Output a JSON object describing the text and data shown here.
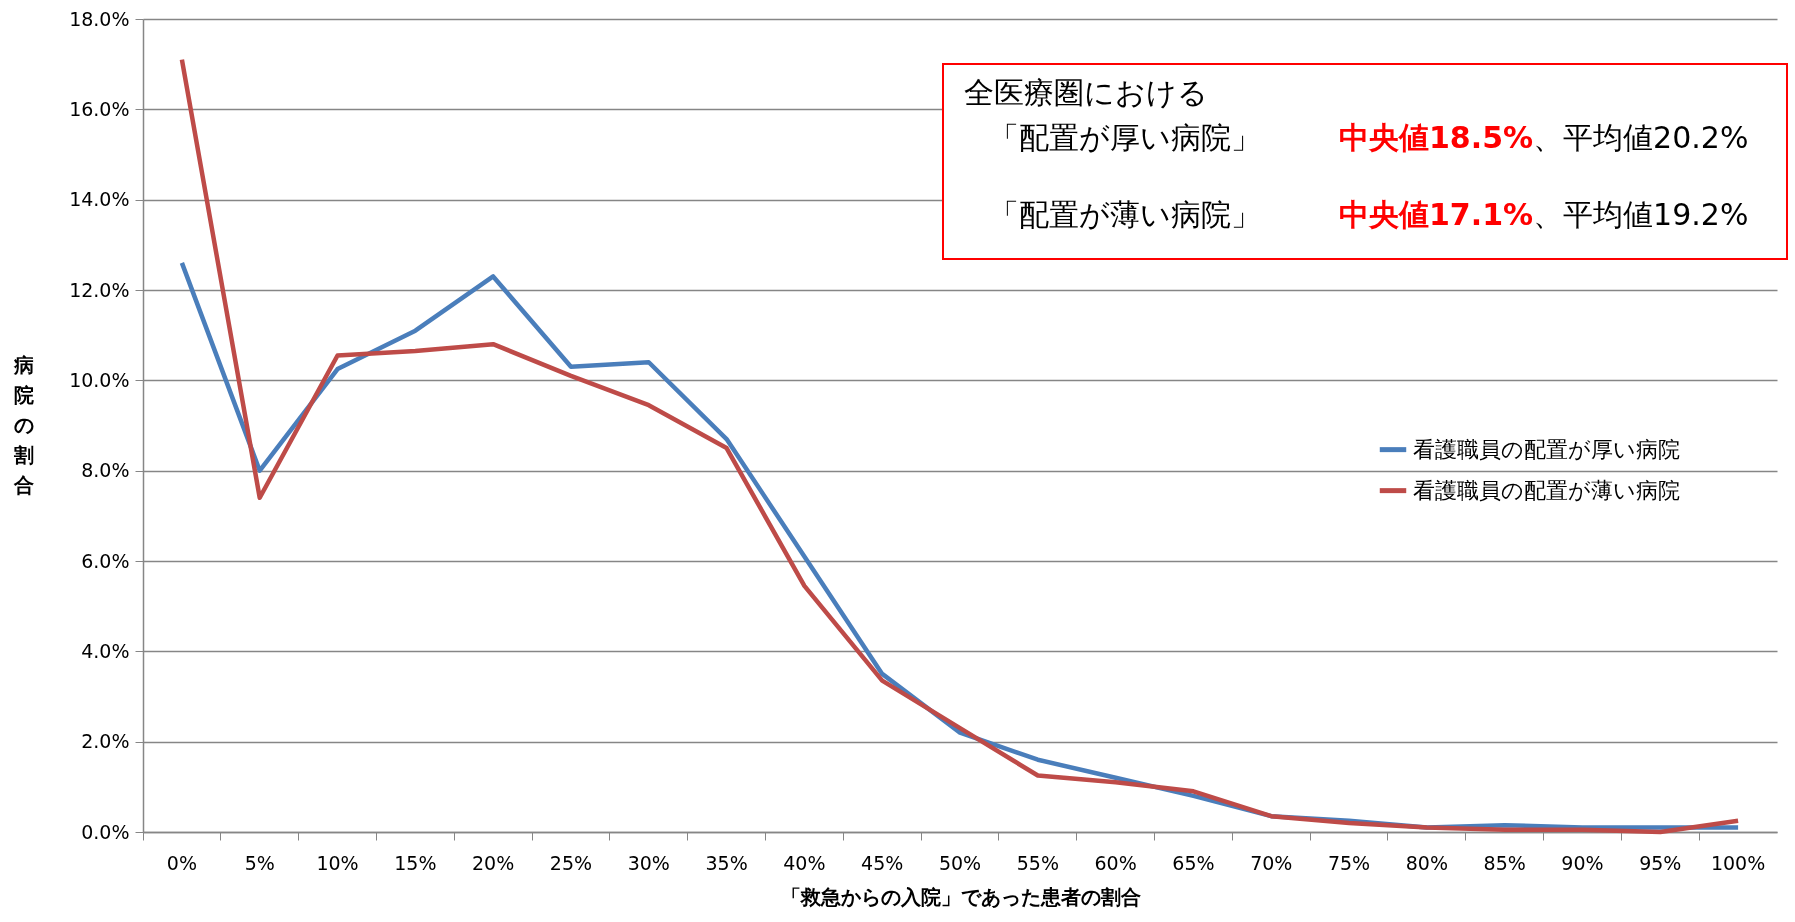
{
  "chart_data": {
    "type": "line",
    "xlabel": "「救急からの入院」であった患者の割合",
    "ylabel": "病院の割合",
    "categories": [
      "0%",
      "5%",
      "10%",
      "15%",
      "20%",
      "25%",
      "30%",
      "35%",
      "40%",
      "45%",
      "50%",
      "55%",
      "60%",
      "65%",
      "70%",
      "75%",
      "80%",
      "85%",
      "90%",
      "95%",
      "100%"
    ],
    "series": [
      {
        "name": "看護職員の配置が厚い病院",
        "color": "#4a7ebb",
        "values": [
          12.6,
          8.0,
          10.25,
          11.1,
          12.3,
          10.3,
          10.4,
          8.7,
          6.1,
          3.5,
          2.2,
          1.6,
          1.2,
          0.8,
          0.35,
          0.25,
          0.1,
          0.15,
          0.1,
          0.1,
          0.1
        ]
      },
      {
        "name": "看護職員の配置が薄い病院",
        "color": "#be4b48",
        "values": [
          17.1,
          7.4,
          10.55,
          10.65,
          10.8,
          10.1,
          9.45,
          8.5,
          5.45,
          3.35,
          2.3,
          1.25,
          1.1,
          0.9,
          0.35,
          0.2,
          0.1,
          0.05,
          0.05,
          0.0,
          0.25
        ]
      }
    ],
    "ylim": [
      0,
      18
    ],
    "yticks": [
      {
        "value": 0,
        "label": "0.0%"
      },
      {
        "value": 2,
        "label": "2.0%"
      },
      {
        "value": 4,
        "label": "4.0%"
      },
      {
        "value": 6,
        "label": "6.0%"
      },
      {
        "value": 8,
        "label": "8.0%"
      },
      {
        "value": 10,
        "label": "10.0%"
      },
      {
        "value": 12,
        "label": "12.0%"
      },
      {
        "value": 14,
        "label": "14.0%"
      },
      {
        "value": 16,
        "label": "16.0%"
      },
      {
        "value": 18,
        "label": "18.0%"
      }
    ],
    "grid": "y",
    "legend": "right",
    "marker": "none",
    "line_style": "solid",
    "annotations": [
      "全医療圏における",
      "「配置が厚い病院」",
      "中央値18.5%",
      "、平均値20.2%",
      "「配置が薄い病院」",
      "中央値17.1%",
      "、平均値19.2%"
    ]
  }
}
